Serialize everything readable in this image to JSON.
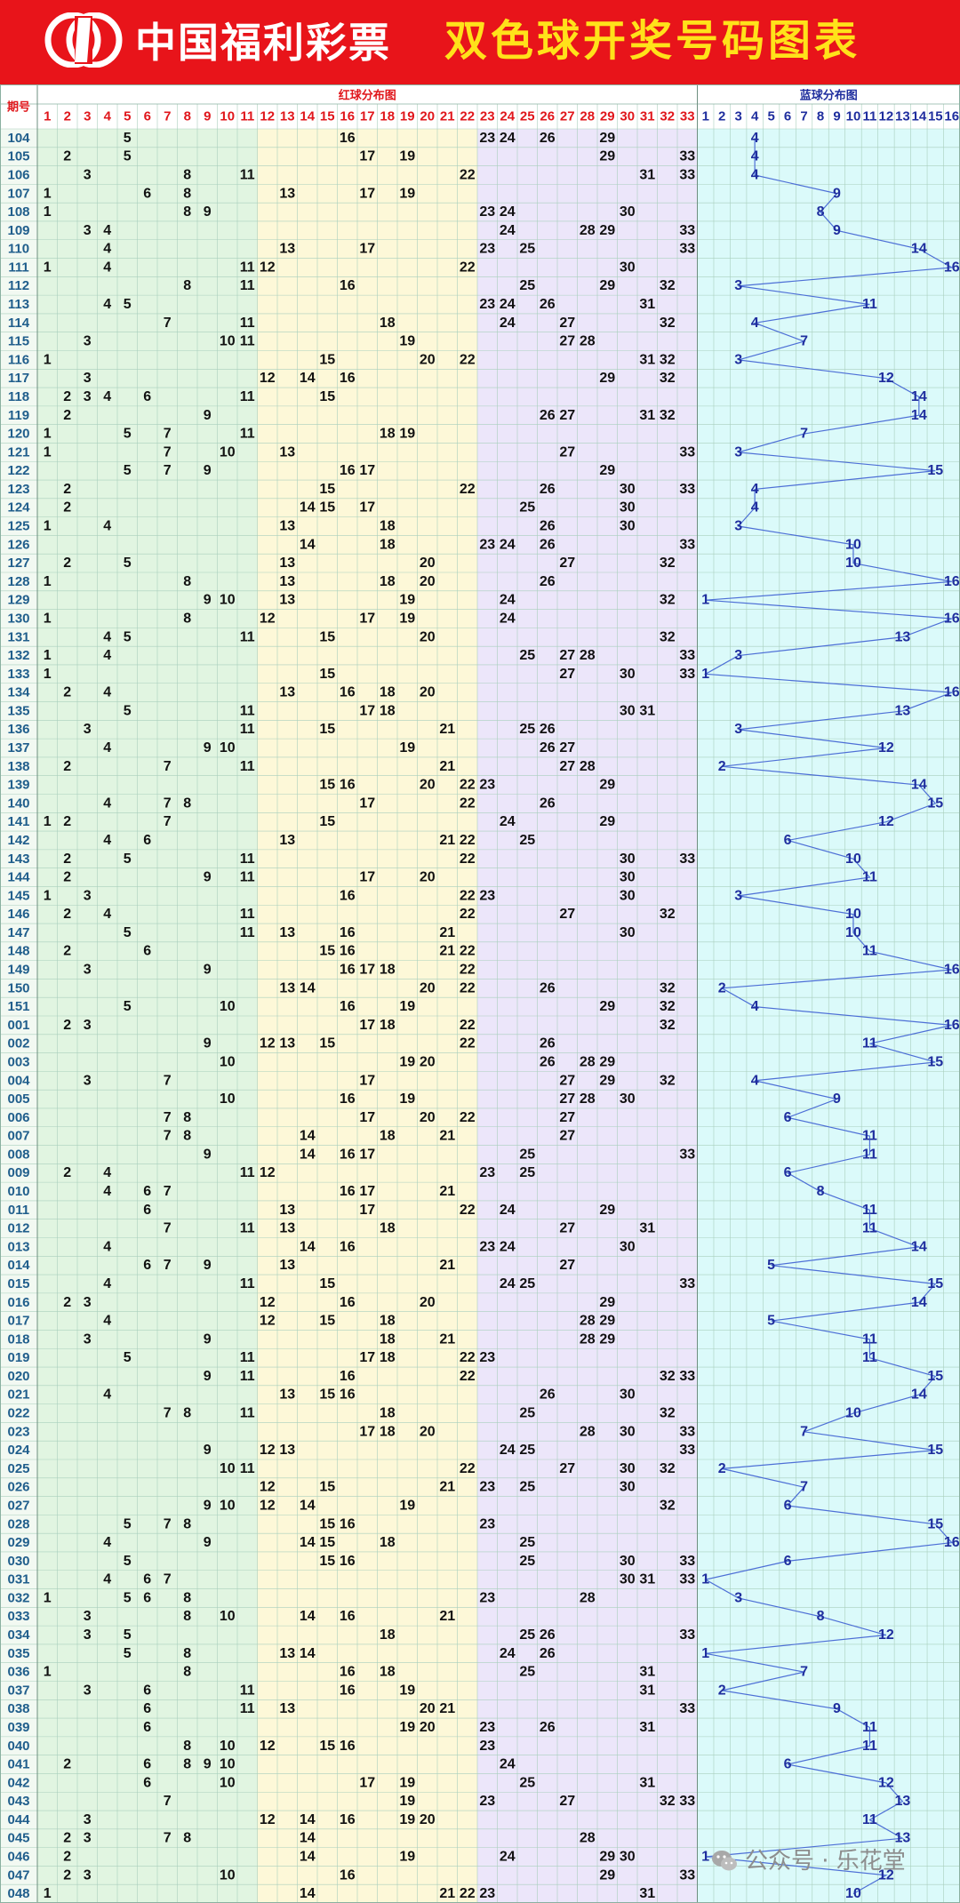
{
  "header": {
    "brand": "中国福利彩票",
    "title": "双色球开奖号码图表",
    "colors": {
      "background": "#e8141a",
      "brand": "#ffffff",
      "title": "#ffe21a"
    },
    "logo_icon": "welfare-lottery-logo-icon"
  },
  "watermark": {
    "text": "公众号 · 乐花堂",
    "icon": "wechat-icon"
  },
  "chart_data": {
    "type": "table",
    "title": "双色球开奖号码图表",
    "period_header": "期号",
    "red_header": "红球分布图",
    "blue_header": "蓝球分布图",
    "red_numbers": [
      1,
      2,
      3,
      4,
      5,
      6,
      7,
      8,
      9,
      10,
      11,
      12,
      13,
      14,
      15,
      16,
      17,
      18,
      19,
      20,
      21,
      22,
      23,
      24,
      25,
      26,
      27,
      28,
      29,
      30,
      31,
      32,
      33
    ],
    "blue_numbers": [
      1,
      2,
      3,
      4,
      5,
      6,
      7,
      8,
      9,
      10,
      11,
      12,
      13,
      14,
      15,
      16
    ],
    "zone_colors": {
      "green": "#e1f5e1",
      "yellow": "#fdf8d8",
      "purple": "#ece6fa",
      "cyan": "#dbfafa",
      "red_text": "#e0161b",
      "blue_text": "#1f2e9e",
      "line": "#4d6fd6"
    },
    "draws": [
      {
        "period": "104",
        "reds": [
          5,
          16,
          23,
          24,
          26,
          29
        ],
        "blue": 4
      },
      {
        "period": "105",
        "reds": [
          2,
          5,
          17,
          19,
          29,
          33
        ],
        "blue": 4
      },
      {
        "period": "106",
        "reds": [
          3,
          8,
          11,
          22,
          31,
          33
        ],
        "blue": 4
      },
      {
        "period": "107",
        "reds": [
          1,
          6,
          8,
          13,
          17,
          19
        ],
        "blue": 9
      },
      {
        "period": "108",
        "reds": [
          1,
          8,
          9,
          23,
          24,
          30
        ],
        "blue": 8
      },
      {
        "period": "109",
        "reds": [
          3,
          4,
          24,
          28,
          29,
          33
        ],
        "blue": 9
      },
      {
        "period": "110",
        "reds": [
          4,
          13,
          17,
          23,
          25,
          33
        ],
        "blue": 14
      },
      {
        "period": "111",
        "reds": [
          1,
          4,
          11,
          12,
          22,
          30
        ],
        "blue": 16
      },
      {
        "period": "112",
        "reds": [
          8,
          11,
          16,
          25,
          29,
          32
        ],
        "blue": 3
      },
      {
        "period": "113",
        "reds": [
          4,
          5,
          23,
          24,
          26,
          31
        ],
        "blue": 11
      },
      {
        "period": "114",
        "reds": [
          7,
          11,
          18,
          24,
          27,
          32
        ],
        "blue": 4
      },
      {
        "period": "115",
        "reds": [
          3,
          10,
          11,
          19,
          27,
          28
        ],
        "blue": 7
      },
      {
        "period": "116",
        "reds": [
          1,
          15,
          20,
          22,
          31,
          32
        ],
        "blue": 3
      },
      {
        "period": "117",
        "reds": [
          3,
          12,
          14,
          16,
          29,
          32
        ],
        "blue": 12
      },
      {
        "period": "118",
        "reds": [
          2,
          3,
          4,
          6,
          11,
          15
        ],
        "blue": 14
      },
      {
        "period": "119",
        "reds": [
          2,
          9,
          26,
          27,
          31,
          32
        ],
        "blue": 14
      },
      {
        "period": "120",
        "reds": [
          1,
          5,
          7,
          11,
          18,
          19
        ],
        "blue": 7
      },
      {
        "period": "121",
        "reds": [
          1,
          7,
          10,
          13,
          27,
          33
        ],
        "blue": 3
      },
      {
        "period": "122",
        "reds": [
          5,
          7,
          9,
          16,
          17,
          29
        ],
        "blue": 15
      },
      {
        "period": "123",
        "reds": [
          2,
          15,
          22,
          26,
          30,
          33
        ],
        "blue": 4
      },
      {
        "period": "124",
        "reds": [
          2,
          14,
          15,
          17,
          25,
          30
        ],
        "blue": 4
      },
      {
        "period": "125",
        "reds": [
          1,
          4,
          13,
          18,
          26,
          30
        ],
        "blue": 3
      },
      {
        "period": "126",
        "reds": [
          14,
          18,
          23,
          24,
          26,
          33
        ],
        "blue": 10
      },
      {
        "period": "127",
        "reds": [
          2,
          5,
          13,
          20,
          27,
          32
        ],
        "blue": 10
      },
      {
        "period": "128",
        "reds": [
          1,
          8,
          13,
          18,
          20,
          26
        ],
        "blue": 16
      },
      {
        "period": "129",
        "reds": [
          9,
          10,
          13,
          19,
          24,
          32
        ],
        "blue": 1
      },
      {
        "period": "130",
        "reds": [
          1,
          8,
          12,
          17,
          19,
          24
        ],
        "blue": 16
      },
      {
        "period": "131",
        "reds": [
          4,
          5,
          11,
          15,
          20,
          32
        ],
        "blue": 13
      },
      {
        "period": "132",
        "reds": [
          1,
          4,
          25,
          27,
          28,
          33
        ],
        "blue": 3
      },
      {
        "period": "133",
        "reds": [
          1,
          15,
          27,
          30,
          33
        ],
        "blue": 1
      },
      {
        "period": "134",
        "reds": [
          2,
          4,
          13,
          16,
          18,
          20
        ],
        "blue": 16
      },
      {
        "period": "135",
        "reds": [
          5,
          11,
          17,
          18,
          30,
          31
        ],
        "blue": 13
      },
      {
        "period": "136",
        "reds": [
          3,
          11,
          15,
          21,
          25,
          26
        ],
        "blue": 3
      },
      {
        "period": "137",
        "reds": [
          4,
          9,
          10,
          19,
          26,
          27
        ],
        "blue": 12
      },
      {
        "period": "138",
        "reds": [
          2,
          7,
          11,
          21,
          27,
          28
        ],
        "blue": 2
      },
      {
        "period": "139",
        "reds": [
          15,
          16,
          20,
          22,
          23,
          29
        ],
        "blue": 14
      },
      {
        "period": "140",
        "reds": [
          4,
          7,
          8,
          17,
          22,
          26
        ],
        "blue": 15
      },
      {
        "period": "141",
        "reds": [
          1,
          2,
          7,
          15,
          24,
          29
        ],
        "blue": 12
      },
      {
        "period": "142",
        "reds": [
          4,
          6,
          13,
          21,
          22,
          25
        ],
        "blue": 6
      },
      {
        "period": "143",
        "reds": [
          2,
          5,
          11,
          22,
          30,
          33
        ],
        "blue": 10
      },
      {
        "period": "144",
        "reds": [
          2,
          9,
          11,
          17,
          20,
          30
        ],
        "blue": 11
      },
      {
        "period": "145",
        "reds": [
          1,
          3,
          16,
          22,
          23,
          30
        ],
        "blue": 3
      },
      {
        "period": "146",
        "reds": [
          2,
          4,
          11,
          22,
          27,
          32
        ],
        "blue": 10
      },
      {
        "period": "147",
        "reds": [
          5,
          11,
          13,
          16,
          21,
          30
        ],
        "blue": 10
      },
      {
        "period": "148",
        "reds": [
          2,
          6,
          15,
          16,
          21,
          22
        ],
        "blue": 11
      },
      {
        "period": "149",
        "reds": [
          3,
          9,
          16,
          17,
          18,
          22
        ],
        "blue": 16
      },
      {
        "period": "150",
        "reds": [
          13,
          14,
          20,
          22,
          26,
          32
        ],
        "blue": 2
      },
      {
        "period": "151",
        "reds": [
          5,
          10,
          16,
          19,
          29,
          32
        ],
        "blue": 4
      },
      {
        "period": "001",
        "reds": [
          2,
          3,
          17,
          18,
          22,
          32
        ],
        "blue": 16
      },
      {
        "period": "002",
        "reds": [
          9,
          12,
          13,
          15,
          22,
          26
        ],
        "blue": 11
      },
      {
        "period": "003",
        "reds": [
          10,
          19,
          20,
          26,
          28,
          29
        ],
        "blue": 15
      },
      {
        "period": "004",
        "reds": [
          3,
          7,
          17,
          27,
          29,
          32
        ],
        "blue": 4
      },
      {
        "period": "005",
        "reds": [
          10,
          16,
          19,
          27,
          28,
          30
        ],
        "blue": 9
      },
      {
        "period": "006",
        "reds": [
          7,
          8,
          17,
          20,
          22,
          27
        ],
        "blue": 6
      },
      {
        "period": "007",
        "reds": [
          7,
          8,
          14,
          18,
          21,
          27
        ],
        "blue": 11
      },
      {
        "period": "008",
        "reds": [
          9,
          14,
          16,
          17,
          25,
          33
        ],
        "blue": 11
      },
      {
        "period": "009",
        "reds": [
          2,
          4,
          11,
          12,
          23,
          25
        ],
        "blue": 6
      },
      {
        "period": "010",
        "reds": [
          4,
          6,
          7,
          16,
          17,
          21
        ],
        "blue": 8
      },
      {
        "period": "011",
        "reds": [
          6,
          13,
          17,
          22,
          24,
          29
        ],
        "blue": 11
      },
      {
        "period": "012",
        "reds": [
          7,
          11,
          13,
          18,
          27,
          31
        ],
        "blue": 11
      },
      {
        "period": "013",
        "reds": [
          4,
          14,
          16,
          23,
          24,
          30
        ],
        "blue": 14
      },
      {
        "period": "014",
        "reds": [
          6,
          7,
          9,
          13,
          21,
          27
        ],
        "blue": 5
      },
      {
        "period": "015",
        "reds": [
          4,
          11,
          15,
          24,
          25,
          33
        ],
        "blue": 15
      },
      {
        "period": "016",
        "reds": [
          2,
          3,
          12,
          16,
          20,
          29
        ],
        "blue": 14
      },
      {
        "period": "017",
        "reds": [
          4,
          12,
          15,
          18,
          28,
          29
        ],
        "blue": 5
      },
      {
        "period": "018",
        "reds": [
          3,
          9,
          18,
          21,
          28,
          29
        ],
        "blue": 11
      },
      {
        "period": "019",
        "reds": [
          5,
          11,
          17,
          18,
          22,
          23
        ],
        "blue": 11
      },
      {
        "period": "020",
        "reds": [
          9,
          11,
          16,
          22,
          32,
          33
        ],
        "blue": 15
      },
      {
        "period": "021",
        "reds": [
          4,
          13,
          15,
          16,
          26,
          30
        ],
        "blue": 14
      },
      {
        "period": "022",
        "reds": [
          7,
          8,
          11,
          18,
          25,
          32
        ],
        "blue": 10
      },
      {
        "period": "023",
        "reds": [
          17,
          18,
          20,
          28,
          30,
          33
        ],
        "blue": 7
      },
      {
        "period": "024",
        "reds": [
          9,
          12,
          13,
          24,
          25,
          33
        ],
        "blue": 15
      },
      {
        "period": "025",
        "reds": [
          10,
          11,
          22,
          27,
          30,
          32
        ],
        "blue": 2
      },
      {
        "period": "026",
        "reds": [
          12,
          15,
          21,
          23,
          25,
          30
        ],
        "blue": 7
      },
      {
        "period": "027",
        "reds": [
          9,
          10,
          12,
          14,
          19,
          32
        ],
        "blue": 6
      },
      {
        "period": "028",
        "reds": [
          5,
          7,
          8,
          15,
          16,
          23
        ],
        "blue": 15
      },
      {
        "period": "029",
        "reds": [
          4,
          9,
          14,
          15,
          18,
          25
        ],
        "blue": 16
      },
      {
        "period": "030",
        "reds": [
          5,
          15,
          16,
          25,
          30,
          33
        ],
        "blue": 6
      },
      {
        "period": "031",
        "reds": [
          4,
          6,
          7,
          30,
          31,
          33
        ],
        "blue": 1
      },
      {
        "period": "032",
        "reds": [
          1,
          5,
          6,
          8,
          23,
          28
        ],
        "blue": 3
      },
      {
        "period": "033",
        "reds": [
          3,
          8,
          10,
          14,
          16,
          21
        ],
        "blue": 8
      },
      {
        "period": "034",
        "reds": [
          3,
          5,
          18,
          25,
          26,
          33
        ],
        "blue": 12
      },
      {
        "period": "035",
        "reds": [
          5,
          8,
          13,
          14,
          24,
          26
        ],
        "blue": 1
      },
      {
        "period": "036",
        "reds": [
          1,
          8,
          16,
          18,
          25,
          31
        ],
        "blue": 7
      },
      {
        "period": "037",
        "reds": [
          3,
          6,
          11,
          16,
          19,
          31
        ],
        "blue": 2
      },
      {
        "period": "038",
        "reds": [
          6,
          11,
          13,
          20,
          21,
          33
        ],
        "blue": 9
      },
      {
        "period": "039",
        "reds": [
          6,
          19,
          20,
          23,
          26,
          31
        ],
        "blue": 11
      },
      {
        "period": "040",
        "reds": [
          8,
          10,
          12,
          15,
          16,
          23
        ],
        "blue": 11
      },
      {
        "period": "041",
        "reds": [
          2,
          6,
          8,
          9,
          10,
          24
        ],
        "blue": 6
      },
      {
        "period": "042",
        "reds": [
          6,
          10,
          17,
          19,
          25,
          31
        ],
        "blue": 12
      },
      {
        "period": "043",
        "reds": [
          7,
          19,
          23,
          27,
          32,
          33
        ],
        "blue": 13
      },
      {
        "period": "044",
        "reds": [
          3,
          12,
          14,
          16,
          19,
          20
        ],
        "blue": 11
      },
      {
        "period": "045",
        "reds": [
          2,
          3,
          7,
          8,
          14,
          28
        ],
        "blue": 13
      },
      {
        "period": "046",
        "reds": [
          2,
          14,
          19,
          24,
          29,
          30
        ],
        "blue": 1
      },
      {
        "period": "047",
        "reds": [
          2,
          3,
          10,
          16,
          29,
          33
        ],
        "blue": 12
      },
      {
        "period": "048",
        "reds": [
          1,
          14,
          21,
          22,
          23,
          31
        ],
        "blue": 10
      }
    ]
  }
}
